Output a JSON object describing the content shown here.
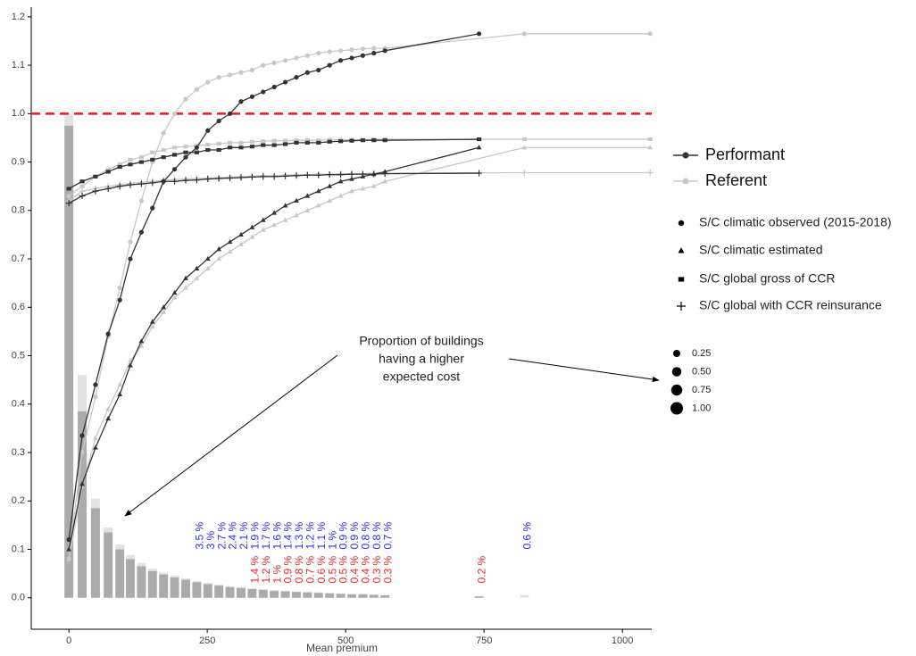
{
  "chart_data": {
    "type": "line",
    "xlabel": "Mean premium",
    "xlim": [
      -68,
      1053
    ],
    "ylim": [
      -0.065,
      1.22
    ],
    "xticks": [
      0,
      250,
      500,
      750,
      1000
    ],
    "yticks": [
      {
        "value": 0,
        "label": "0.0"
      },
      0.1,
      0.2,
      0.3,
      0.4,
      0.5,
      0.6,
      0.7,
      0.8,
      0.9,
      {
        "value": 1,
        "label": "1.0"
      },
      1.1,
      1.2
    ],
    "grid": false,
    "hline": {
      "value": 1,
      "color": "#ee1c1c"
    },
    "bars": [
      {
        "color": "#e2e2e2",
        "width": 16,
        "x": [
          0,
          24,
          48,
          71,
          92,
          111,
          131,
          151,
          171,
          191,
          211,
          231,
          251,
          271,
          291,
          311,
          331,
          351,
          371,
          391,
          411,
          431,
          451,
          471,
          491,
          511,
          531,
          551,
          571,
          823
        ],
        "values": [
          1.0,
          0.46,
          0.205,
          0.145,
          0.11,
          0.088,
          0.072,
          0.06,
          0.052,
          0.046,
          0.04,
          0.035,
          0.031,
          0.027,
          0.024,
          0.022,
          0.02,
          0.018,
          0.016,
          0.015,
          0.013,
          0.012,
          0.011,
          0.01,
          0.009,
          0.008,
          0.008,
          0.007,
          0.006,
          0.006
        ]
      },
      {
        "color": "#ababab",
        "width": 16,
        "x": [
          0,
          24,
          48,
          71,
          92,
          111,
          131,
          151,
          171,
          191,
          211,
          231,
          251,
          271,
          291,
          311,
          331,
          351,
          371,
          391,
          411,
          431,
          451,
          471,
          491,
          511,
          531,
          551,
          571,
          741
        ],
        "values": [
          0.975,
          0.385,
          0.185,
          0.135,
          0.1,
          0.08,
          0.065,
          0.055,
          0.048,
          0.042,
          0.037,
          0.032,
          0.028,
          0.025,
          0.022,
          0.02,
          0.018,
          0.016,
          0.014,
          0.013,
          0.012,
          0.011,
          0.01,
          0.009,
          0.008,
          0.007,
          0.007,
          0.006,
          0.005,
          0.003
        ]
      }
    ],
    "series": [
      {
        "color": "#c8c8c8",
        "shape": "circle",
        "x": [
          0,
          24,
          48,
          71,
          92,
          111,
          131,
          151,
          171,
          191,
          211,
          231,
          251,
          271,
          291,
          311,
          331,
          351,
          371,
          391,
          411,
          431,
          451,
          471,
          491,
          511,
          531,
          551,
          571,
          823,
          1050
        ],
        "values": [
          0.08,
          0.3,
          0.415,
          0.54,
          0.64,
          0.735,
          0.82,
          0.9,
          0.96,
          1.0,
          1.03,
          1.05,
          1.065,
          1.075,
          1.08,
          1.085,
          1.09,
          1.1,
          1.105,
          1.11,
          1.115,
          1.12,
          1.125,
          1.128,
          1.13,
          1.132,
          1.134,
          1.135,
          1.135,
          1.165,
          1.165
        ]
      },
      {
        "color": "#c8c8c8",
        "shape": "triangle",
        "x": [
          0,
          24,
          48,
          71,
          92,
          111,
          131,
          151,
          171,
          191,
          211,
          231,
          251,
          271,
          291,
          311,
          331,
          351,
          371,
          391,
          411,
          431,
          451,
          471,
          491,
          511,
          531,
          551,
          571,
          823,
          1050
        ],
        "values": [
          0.08,
          0.23,
          0.33,
          0.39,
          0.44,
          0.49,
          0.52,
          0.56,
          0.59,
          0.62,
          0.64,
          0.66,
          0.68,
          0.7,
          0.715,
          0.73,
          0.745,
          0.76,
          0.77,
          0.78,
          0.79,
          0.8,
          0.81,
          0.82,
          0.83,
          0.84,
          0.845,
          0.85,
          0.86,
          0.93,
          0.93
        ]
      },
      {
        "color": "#c8c8c8",
        "shape": "square",
        "x": [
          0,
          24,
          48,
          71,
          92,
          111,
          131,
          151,
          171,
          191,
          211,
          231,
          251,
          271,
          291,
          311,
          331,
          351,
          371,
          391,
          411,
          431,
          451,
          471,
          491,
          511,
          531,
          551,
          571,
          823,
          1050
        ],
        "values": [
          0.83,
          0.85,
          0.87,
          0.885,
          0.895,
          0.905,
          0.91,
          0.92,
          0.925,
          0.93,
          0.932,
          0.934,
          0.936,
          0.938,
          0.94,
          0.94,
          0.942,
          0.943,
          0.944,
          0.944,
          0.945,
          0.945,
          0.945,
          0.946,
          0.946,
          0.946,
          0.946,
          0.947,
          0.947,
          0.947,
          0.947
        ]
      },
      {
        "color": "#c8c8c8",
        "shape": "plus",
        "x": [
          0,
          24,
          48,
          71,
          92,
          111,
          131,
          151,
          171,
          191,
          211,
          231,
          251,
          271,
          291,
          311,
          331,
          351,
          371,
          391,
          411,
          431,
          451,
          471,
          491,
          511,
          531,
          551,
          571,
          823,
          1050
        ],
        "values": [
          0.82,
          0.84,
          0.845,
          0.85,
          0.853,
          0.856,
          0.858,
          0.86,
          0.862,
          0.864,
          0.865,
          0.866,
          0.867,
          0.868,
          0.869,
          0.87,
          0.871,
          0.872,
          0.872,
          0.873,
          0.874,
          0.874,
          0.875,
          0.875,
          0.876,
          0.876,
          0.876,
          0.877,
          0.877,
          0.878,
          0.878
        ]
      },
      {
        "color": "#333333",
        "shape": "circle",
        "x": [
          0,
          24,
          48,
          71,
          92,
          111,
          131,
          151,
          171,
          191,
          211,
          231,
          251,
          271,
          291,
          311,
          331,
          351,
          371,
          391,
          411,
          431,
          451,
          471,
          491,
          511,
          531,
          551,
          571,
          741
        ],
        "values": [
          0.12,
          0.335,
          0.44,
          0.545,
          0.615,
          0.7,
          0.755,
          0.805,
          0.86,
          0.885,
          0.91,
          0.93,
          0.965,
          0.985,
          1.0,
          1.025,
          1.035,
          1.045,
          1.055,
          1.065,
          1.075,
          1.085,
          1.09,
          1.1,
          1.11,
          1.115,
          1.12,
          1.125,
          1.13,
          1.165
        ]
      },
      {
        "color": "#333333",
        "shape": "triangle",
        "x": [
          0,
          24,
          48,
          71,
          92,
          111,
          131,
          151,
          171,
          191,
          211,
          231,
          251,
          271,
          291,
          311,
          331,
          351,
          371,
          391,
          411,
          431,
          451,
          471,
          491,
          511,
          531,
          551,
          571,
          741
        ],
        "values": [
          0.1,
          0.235,
          0.31,
          0.37,
          0.42,
          0.48,
          0.53,
          0.57,
          0.6,
          0.63,
          0.66,
          0.68,
          0.7,
          0.72,
          0.735,
          0.75,
          0.765,
          0.78,
          0.795,
          0.81,
          0.82,
          0.83,
          0.84,
          0.85,
          0.86,
          0.865,
          0.87,
          0.875,
          0.88,
          0.93
        ]
      },
      {
        "color": "#333333",
        "shape": "square",
        "x": [
          0,
          24,
          48,
          71,
          92,
          111,
          131,
          151,
          171,
          191,
          211,
          231,
          251,
          271,
          291,
          311,
          331,
          351,
          371,
          391,
          411,
          431,
          451,
          471,
          491,
          511,
          531,
          551,
          571,
          741
        ],
        "values": [
          0.845,
          0.86,
          0.87,
          0.88,
          0.89,
          0.895,
          0.9,
          0.905,
          0.91,
          0.915,
          0.92,
          0.92,
          0.925,
          0.925,
          0.93,
          0.93,
          0.932,
          0.935,
          0.935,
          0.937,
          0.94,
          0.94,
          0.94,
          0.942,
          0.943,
          0.944,
          0.945,
          0.945,
          0.945,
          0.947
        ]
      },
      {
        "color": "#333333",
        "shape": "plus",
        "x": [
          0,
          24,
          48,
          71,
          92,
          111,
          131,
          151,
          171,
          191,
          211,
          231,
          251,
          271,
          291,
          311,
          331,
          351,
          371,
          391,
          411,
          431,
          451,
          471,
          491,
          511,
          531,
          551,
          571,
          741
        ],
        "values": [
          0.815,
          0.83,
          0.84,
          0.845,
          0.85,
          0.853,
          0.855,
          0.857,
          0.86,
          0.86,
          0.862,
          0.863,
          0.865,
          0.866,
          0.867,
          0.868,
          0.869,
          0.87,
          0.87,
          0.871,
          0.872,
          0.873,
          0.873,
          0.874,
          0.874,
          0.875,
          0.875,
          0.875,
          0.876,
          0.877
        ]
      }
    ],
    "percent_labels": [
      {
        "color": "#2f2fe8",
        "x": [
          231,
          251,
          271,
          291,
          311,
          331,
          351,
          371,
          391,
          411,
          431,
          451,
          471,
          491,
          511,
          531,
          551,
          571,
          823
        ],
        "labels": [
          "3.5 %",
          "3 %",
          "2.7 %",
          "2.4 %",
          "2.1 %",
          "1.9 %",
          "1.7 %",
          "1.6 %",
          "1.4 %",
          "1.3 %",
          "1.2 %",
          "1.1 %",
          "1 %",
          "0.9 %",
          "0.9 %",
          "0.8 %",
          "0.8 %",
          "0.7 %",
          "0.6 %"
        ]
      },
      {
        "color": "#ee2a2a",
        "x": [
          331,
          351,
          371,
          391,
          411,
          431,
          451,
          471,
          491,
          511,
          531,
          551,
          571,
          741
        ],
        "labels": [
          "1.4 %",
          "1.2 %",
          "1 %",
          "0.9 %",
          "0.8 %",
          "0.7 %",
          "0.6 %",
          "0.5 %",
          "0.5 %",
          "0.4 %",
          "0.4 %",
          "0.3 %",
          "0.3 %",
          "0.2 %"
        ]
      }
    ],
    "legend": [
      {
        "name": "Performant",
        "color": "#333333"
      },
      {
        "name": "Referent",
        "color": "#c8c8c8"
      }
    ],
    "shape_legend": [
      {
        "label": "S/C climatic observed (2015-2018)",
        "shape": "circle"
      },
      {
        "label": "S/C climatic estimated",
        "shape": "triangle"
      },
      {
        "label": "S/C global gross of CCR",
        "shape": "square"
      },
      {
        "label": "S/C global with CCR reinsurance",
        "shape": "plus"
      }
    ],
    "size_legend": [
      {
        "value": 0.25,
        "label": "0.25"
      },
      {
        "value": 0.5,
        "label": "0.50"
      },
      {
        "value": 0.75,
        "label": "0.75"
      },
      {
        "value": 1,
        "label": "1.00"
      }
    ],
    "annotation": [
      "Proportion of buildings",
      "having a higher",
      "expected cost"
    ]
  }
}
